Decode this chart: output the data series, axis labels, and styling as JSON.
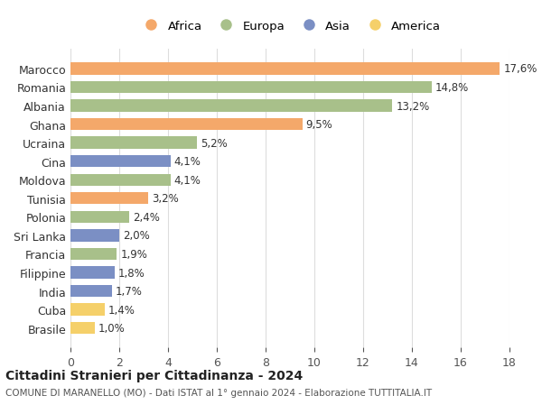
{
  "categories": [
    "Brasile",
    "Cuba",
    "India",
    "Filippine",
    "Francia",
    "Sri Lanka",
    "Polonia",
    "Tunisia",
    "Moldova",
    "Cina",
    "Ucraina",
    "Ghana",
    "Albania",
    "Romania",
    "Marocco"
  ],
  "values": [
    1.0,
    1.4,
    1.7,
    1.8,
    1.9,
    2.0,
    2.4,
    3.2,
    4.1,
    4.1,
    5.2,
    9.5,
    13.2,
    14.8,
    17.6
  ],
  "labels": [
    "1,0%",
    "1,4%",
    "1,7%",
    "1,8%",
    "1,9%",
    "2,0%",
    "2,4%",
    "3,2%",
    "4,1%",
    "4,1%",
    "5,2%",
    "9,5%",
    "13,2%",
    "14,8%",
    "17,6%"
  ],
  "continents": [
    "America",
    "America",
    "Asia",
    "Asia",
    "Europa",
    "Asia",
    "Europa",
    "Africa",
    "Europa",
    "Asia",
    "Europa",
    "Africa",
    "Europa",
    "Europa",
    "Africa"
  ],
  "colors": {
    "Africa": "#F4A86A",
    "Europa": "#A8C08A",
    "Asia": "#7B8FC4",
    "America": "#F5D06A"
  },
  "legend_order": [
    "Africa",
    "Europa",
    "Asia",
    "America"
  ],
  "title": "Cittadini Stranieri per Cittadinanza - 2024",
  "subtitle": "COMUNE DI MARANELLO (MO) - Dati ISTAT al 1° gennaio 2024 - Elaborazione TUTTITALIA.IT",
  "xlim": [
    0,
    18
  ],
  "xticks": [
    0,
    2,
    4,
    6,
    8,
    10,
    12,
    14,
    16,
    18
  ],
  "background_color": "#ffffff",
  "grid_color": "#dddddd"
}
